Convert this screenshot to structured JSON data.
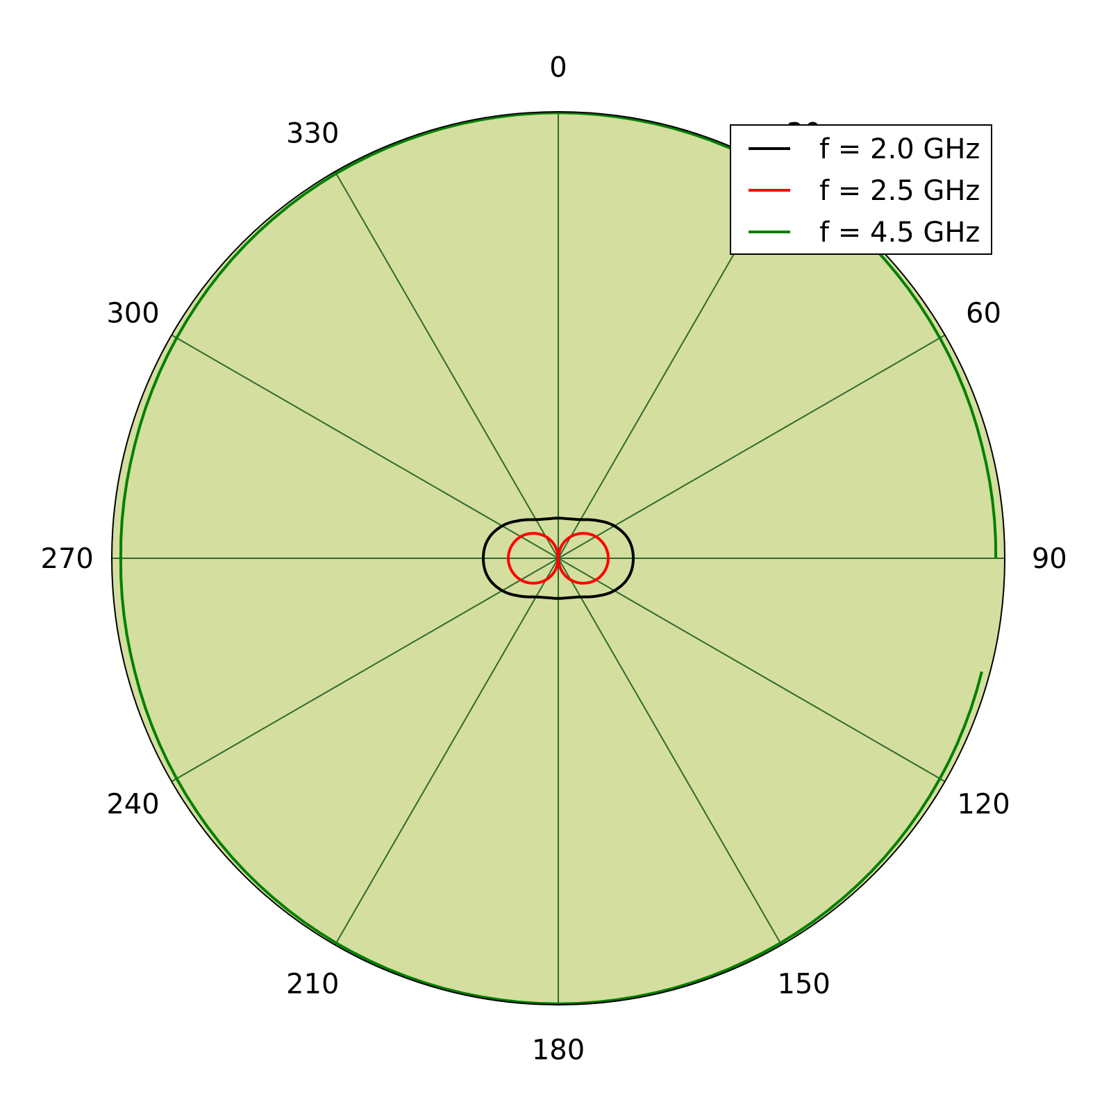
{
  "chart_data": {
    "type": "polar-line",
    "title": "",
    "angle_unit": "degrees",
    "angle_zero": "top",
    "angle_direction": "clockwise",
    "theta_ticks": [
      "0",
      "30",
      "60",
      "90",
      "120",
      "150",
      "180",
      "210",
      "240",
      "270",
      "300",
      "330"
    ],
    "theta_tick_values": [
      0,
      30,
      60,
      90,
      120,
      150,
      180,
      210,
      240,
      270,
      300,
      330
    ],
    "r_range": [
      0,
      1.0
    ],
    "r_tick_labels_shown": false,
    "grid": true,
    "background_color": "#d4de9e",
    "grid_color": "#2d6a2d",
    "legend_position": "top-right",
    "series": [
      {
        "name": "f = 2.0 GHz",
        "color": "#000000",
        "points": [
          [
            0,
            0.09
          ],
          [
            15,
            0.0915
          ],
          [
            30,
            0.1
          ],
          [
            45,
            0.12
          ],
          [
            60,
            0.145
          ],
          [
            75,
            0.163
          ],
          [
            90,
            0.168
          ],
          [
            105,
            0.163
          ],
          [
            120,
            0.145
          ],
          [
            135,
            0.12
          ],
          [
            150,
            0.1
          ],
          [
            165,
            0.0915
          ],
          [
            180,
            0.09
          ],
          [
            195,
            0.0915
          ],
          [
            210,
            0.1
          ],
          [
            225,
            0.12
          ],
          [
            240,
            0.145
          ],
          [
            255,
            0.163
          ],
          [
            270,
            0.168
          ],
          [
            285,
            0.163
          ],
          [
            300,
            0.145
          ],
          [
            315,
            0.12
          ],
          [
            330,
            0.1
          ],
          [
            345,
            0.0915
          ]
        ]
      },
      {
        "name": "f = 2.5 GHz",
        "color": "#ff0000",
        "points": [
          [
            0,
            0.0
          ],
          [
            15,
            0.029
          ],
          [
            30,
            0.056
          ],
          [
            45,
            0.079
          ],
          [
            60,
            0.097
          ],
          [
            75,
            0.108
          ],
          [
            90,
            0.112
          ],
          [
            105,
            0.108
          ],
          [
            120,
            0.097
          ],
          [
            135,
            0.079
          ],
          [
            150,
            0.056
          ],
          [
            165,
            0.029
          ],
          [
            180,
            0.0
          ],
          [
            195,
            0.029
          ],
          [
            210,
            0.056
          ],
          [
            225,
            0.079
          ],
          [
            240,
            0.097
          ],
          [
            255,
            0.108
          ],
          [
            270,
            0.112
          ],
          [
            285,
            0.108
          ],
          [
            300,
            0.097
          ],
          [
            315,
            0.079
          ],
          [
            330,
            0.056
          ],
          [
            345,
            0.029
          ]
        ]
      },
      {
        "name": "f = 4.5 GHz",
        "color": "#008000",
        "points": [
          [
            0,
            0.998
          ],
          [
            15,
            0.997
          ],
          [
            30,
            0.995
          ],
          [
            45,
            0.992
          ],
          [
            60,
            0.987
          ],
          [
            75,
            0.982
          ],
          [
            90,
            0.98
          ],
          [
            95,
            null
          ],
          [
            105,
            0.982
          ],
          [
            120,
            0.987
          ],
          [
            135,
            0.992
          ],
          [
            150,
            0.995
          ],
          [
            165,
            0.997
          ],
          [
            180,
            0.998
          ],
          [
            195,
            0.997
          ],
          [
            210,
            0.995
          ],
          [
            225,
            0.992
          ],
          [
            240,
            0.987
          ],
          [
            255,
            0.982
          ],
          [
            270,
            0.98
          ],
          [
            285,
            0.982
          ],
          [
            300,
            0.987
          ],
          [
            315,
            0.992
          ],
          [
            330,
            0.995
          ],
          [
            345,
            0.997
          ]
        ]
      }
    ]
  }
}
